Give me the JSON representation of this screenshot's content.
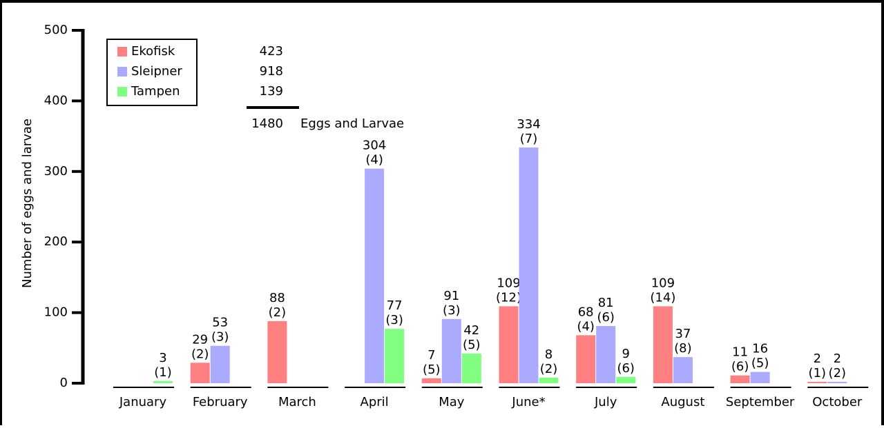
{
  "chart_data": {
    "type": "bar",
    "y_label": "Number of eggs and larvae",
    "categories": [
      "January",
      "February",
      "March",
      "April",
      "May",
      "June*",
      "July",
      "August",
      "September",
      "October"
    ],
    "series": [
      {
        "name": "Ekofisk",
        "color": "#ff8080",
        "total": 423,
        "values": [
          null,
          29,
          88,
          null,
          7,
          109,
          68,
          109,
          11,
          2
        ],
        "sample_labels": [
          null,
          "(2)",
          "(2)",
          null,
          "(5)",
          "(12)",
          "(4)",
          "(14)",
          "(6)",
          "(1)"
        ]
      },
      {
        "name": "Sleipner",
        "color": "#aaaaff",
        "total": 918,
        "values": [
          null,
          53,
          null,
          304,
          91,
          334,
          81,
          37,
          16,
          2
        ],
        "sample_labels": [
          null,
          "(3)",
          null,
          "(4)",
          "(3)",
          "(7)",
          "(6)",
          "(8)",
          "(5)",
          "(2)"
        ]
      },
      {
        "name": "Tampen",
        "color": "#80ff80",
        "total": 139,
        "values": [
          3,
          null,
          null,
          77,
          42,
          8,
          9,
          null,
          null,
          null
        ],
        "sample_labels": [
          "(1)",
          null,
          null,
          "(3)",
          "(5)",
          "(2)",
          "(6)",
          null,
          null,
          null
        ]
      }
    ],
    "grand_total": 1480,
    "grand_total_label": "Eggs and Larvae",
    "ylim": [
      0,
      500
    ],
    "yticks": [
      0,
      100,
      200,
      300,
      400,
      500
    ],
    "legend": "upper left"
  }
}
